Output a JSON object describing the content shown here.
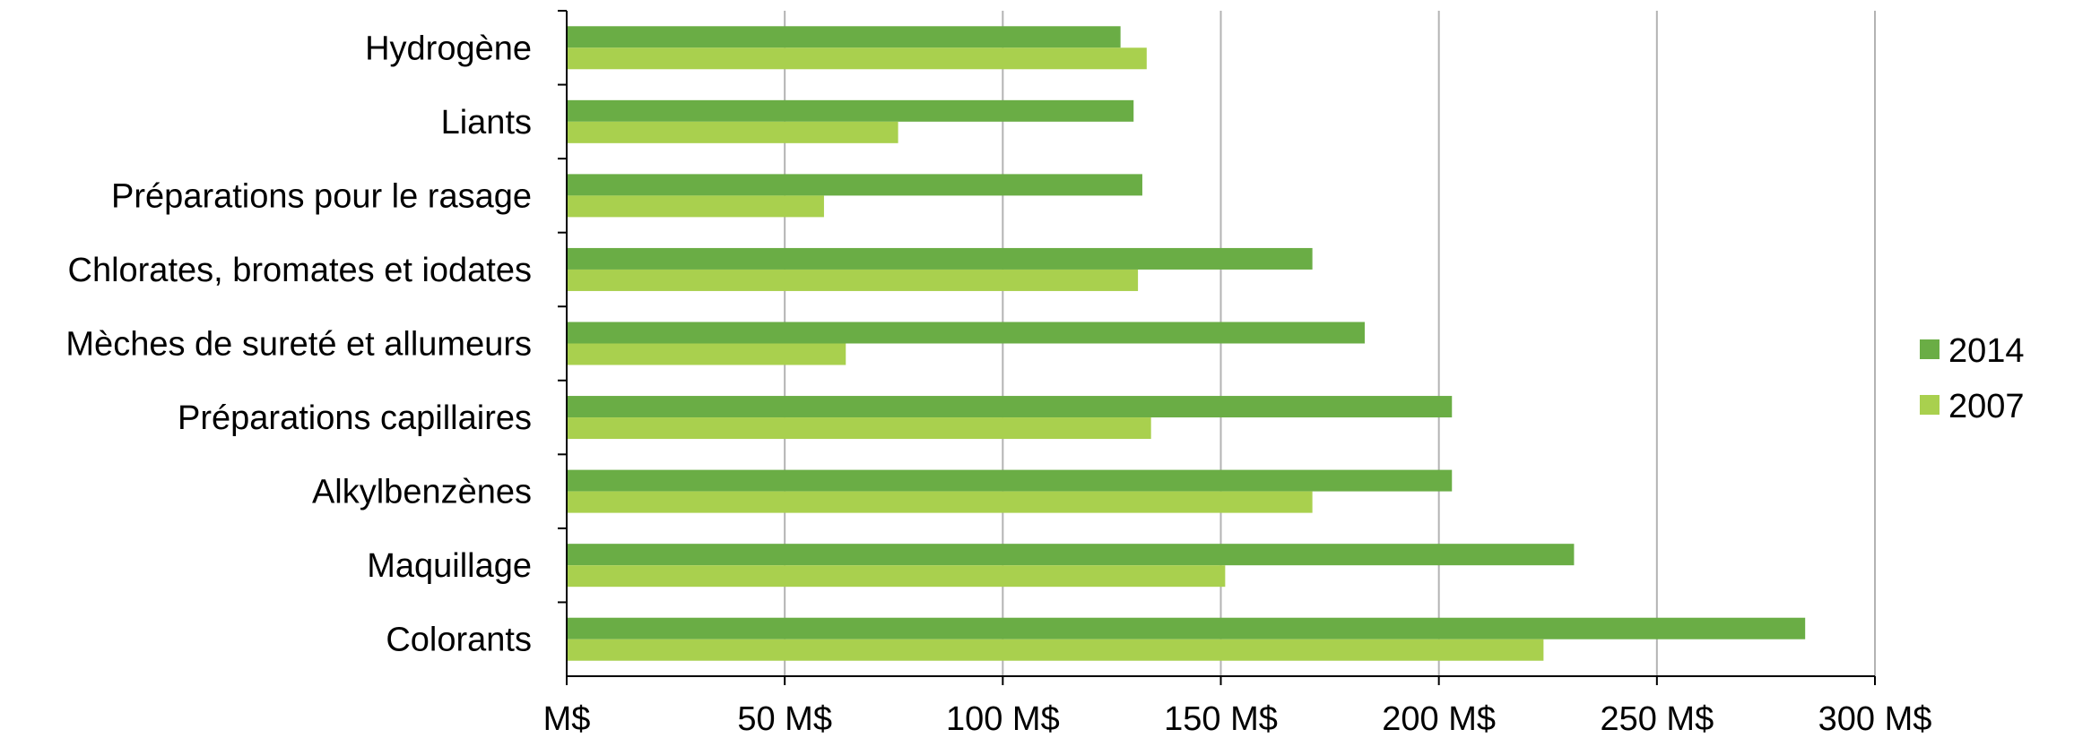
{
  "chart_data": {
    "type": "bar",
    "orientation": "horizontal",
    "categories": [
      "Hydrogène",
      "Liants",
      "Préparations pour le rasage",
      "Chlorates, bromates et iodates",
      "Mèches de sureté et allumeurs",
      "Préparations capillaires",
      "Alkylbenzènes",
      "Maquillage",
      "Colorants"
    ],
    "series": [
      {
        "name": "2014",
        "color": "#6aad45",
        "values": [
          127,
          130,
          132,
          171,
          183,
          203,
          203,
          231,
          284
        ]
      },
      {
        "name": "2007",
        "color": "#a9d04e",
        "values": [
          133,
          76,
          59,
          131,
          64,
          134,
          171,
          151,
          224
        ]
      }
    ],
    "xaxis": {
      "min": 0,
      "max": 300,
      "step": 50,
      "tick_labels": [
        "M$",
        "50 M$",
        "100 M$",
        "150 M$",
        "200 M$",
        "250 M$",
        "300 M$"
      ]
    },
    "grid": true,
    "legend_position": "right"
  }
}
